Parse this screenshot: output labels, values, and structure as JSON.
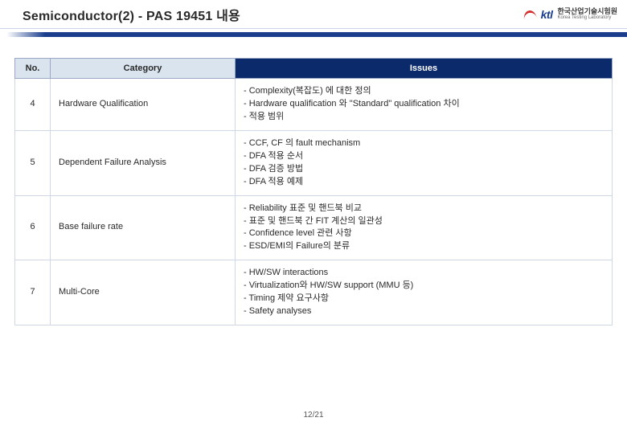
{
  "header": {
    "title": "Semiconductor(2) - PAS 19451 내용",
    "logo_text": "ktl",
    "org_kr": "한국산업기술시험원",
    "org_en": "Korea Testing Laboratory"
  },
  "table": {
    "columns": [
      "No.",
      "Category",
      "Issues"
    ],
    "rows": [
      {
        "no": "4",
        "category": "Hardware Qualification",
        "issues": "- Complexity(복잡도) 에 대한 정의\n- Hardware qualification 와 \"Standard\" qualification 차이\n- 적용 범위"
      },
      {
        "no": "5",
        "category": "Dependent Failure Analysis",
        "issues": "- CCF, CF 의 fault mechanism\n- DFA 적용 순서\n- DFA 검증 방법\n- DFA 적용 예제"
      },
      {
        "no": "6",
        "category": "Base failure rate",
        "issues": "- Reliability 표준 및 핸드북 비교\n- 표준 및 핸드북 간 FIT 계산의 일관성\n- Confidence level 관련 사항\n- ESD/EMI의 Failure의 분류"
      },
      {
        "no": "7",
        "category": "Multi-Core",
        "issues": "- HW/SW interactions\n- Virtualization와 HW/SW support (MMU 등)\n- Timing 제약 요구사항\n- Safety analyses"
      }
    ]
  },
  "footer": {
    "page": "12/21"
  }
}
